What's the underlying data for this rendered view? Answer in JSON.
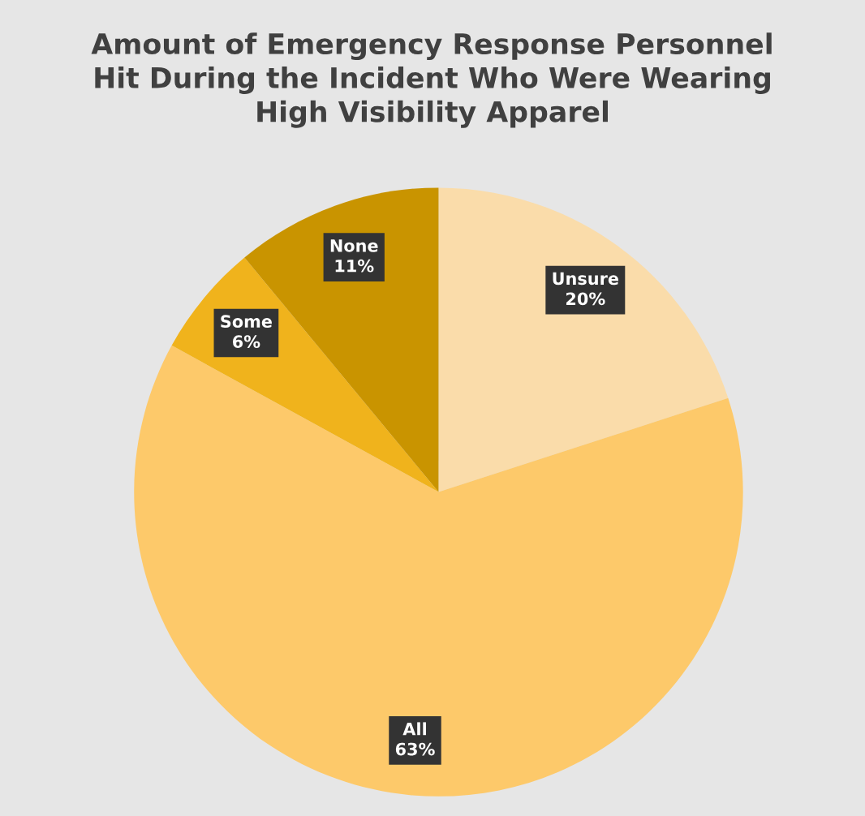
{
  "chart_data": {
    "type": "pie",
    "title": "Amount of Emergency Response Personnel Hit During the Incident Who Were Wearing High Visibility Apparel",
    "categories": [
      "Unsure",
      "All",
      "Some",
      "None"
    ],
    "values": [
      20,
      63,
      6,
      11
    ],
    "value_labels": [
      "20%",
      "63%",
      "6%",
      "11%"
    ],
    "colors": [
      "#fadcaa",
      "#fdc96a",
      "#f0b31c",
      "#c99400"
    ]
  }
}
